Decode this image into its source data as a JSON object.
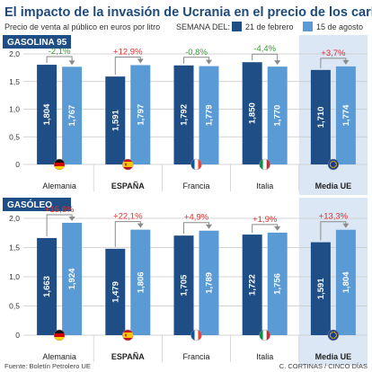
{
  "title": "El impacto de la invasión de Ucrania en el precio de los carburantes",
  "subtitle": "Precio de venta al público en euros por litro",
  "legend_prefix": "SEMANA DEL:",
  "source": "Fuente: Boletín Petrolero UE",
  "credit": "C. CORTINAS / CINCO DÍAS",
  "colors": {
    "dark": "#1f4e86",
    "light": "#5b9bd5",
    "section_bg": "#1f4e86",
    "highlight_bg": "#dbe7f4",
    "grid": "#c8c8c8",
    "arrow": "#8a8a8a",
    "up": "#e03030",
    "down": "#3a9a3a"
  },
  "chart_data": [
    {
      "type": "bar",
      "title": "GASOLINA 95",
      "categories": [
        "Alemania",
        "ESPAÑA",
        "Francia",
        "Italia",
        "Media UE"
      ],
      "flags": [
        "germany-flag-icon",
        "spain-flag-icon",
        "france-flag-icon",
        "italy-flag-icon",
        "eu-flag-icon"
      ],
      "bold_categories": [
        "ESPAÑA",
        "Media UE"
      ],
      "highlight_category": "Media UE",
      "series": [
        {
          "name": "21 de febrero",
          "values": [
            1.804,
            1.591,
            1.792,
            1.85,
            1.71
          ],
          "labels": [
            "1,804",
            "1,591",
            "1,792",
            "1,850",
            "1,710"
          ]
        },
        {
          "name": "15 de agosto",
          "values": [
            1.767,
            1.797,
            1.779,
            1.77,
            1.774
          ],
          "labels": [
            "1,767",
            "1,797",
            "1,779",
            "1,770",
            "1,774"
          ]
        }
      ],
      "changes": [
        "-2,1%",
        "+12,9%",
        "-0,8%",
        "-4,4%",
        "+3,7%"
      ],
      "ylim": [
        0,
        2.0
      ],
      "yticks": [
        0,
        0.5,
        1.0,
        1.5,
        2.0
      ],
      "ytick_labels": [
        "0",
        "0,5",
        "1,0",
        "1,5",
        "2,0"
      ],
      "grid": true
    },
    {
      "type": "bar",
      "title": "GASÓLEO",
      "categories": [
        "Alemania",
        "ESPAÑA",
        "Francia",
        "Italia",
        "Media UE"
      ],
      "flags": [
        "germany-flag-icon",
        "spain-flag-icon",
        "france-flag-icon",
        "italy-flag-icon",
        "eu-flag-icon"
      ],
      "bold_categories": [
        "ESPAÑA",
        "Media UE"
      ],
      "highlight_category": "Media UE",
      "series": [
        {
          "name": "21 de febrero",
          "values": [
            1.663,
            1.479,
            1.705,
            1.722,
            1.591
          ],
          "labels": [
            "1,663",
            "1,479",
            "1,705",
            "1,722",
            "1,591"
          ]
        },
        {
          "name": "15 de agosto",
          "values": [
            1.924,
            1.806,
            1.789,
            1.756,
            1.804
          ],
          "labels": [
            "1,924",
            "1,806",
            "1,789",
            "1,756",
            "1,804"
          ]
        }
      ],
      "changes": [
        "+15,6%",
        "+22,1%",
        "+4,9%",
        "+1,9%",
        "+13,3%"
      ],
      "ylim": [
        0,
        2.0
      ],
      "yticks": [
        0,
        0.5,
        1.0,
        1.5,
        2.0
      ],
      "ytick_labels": [
        "0",
        "0,5",
        "1,0",
        "1,5",
        "2,0"
      ],
      "grid": true
    }
  ]
}
